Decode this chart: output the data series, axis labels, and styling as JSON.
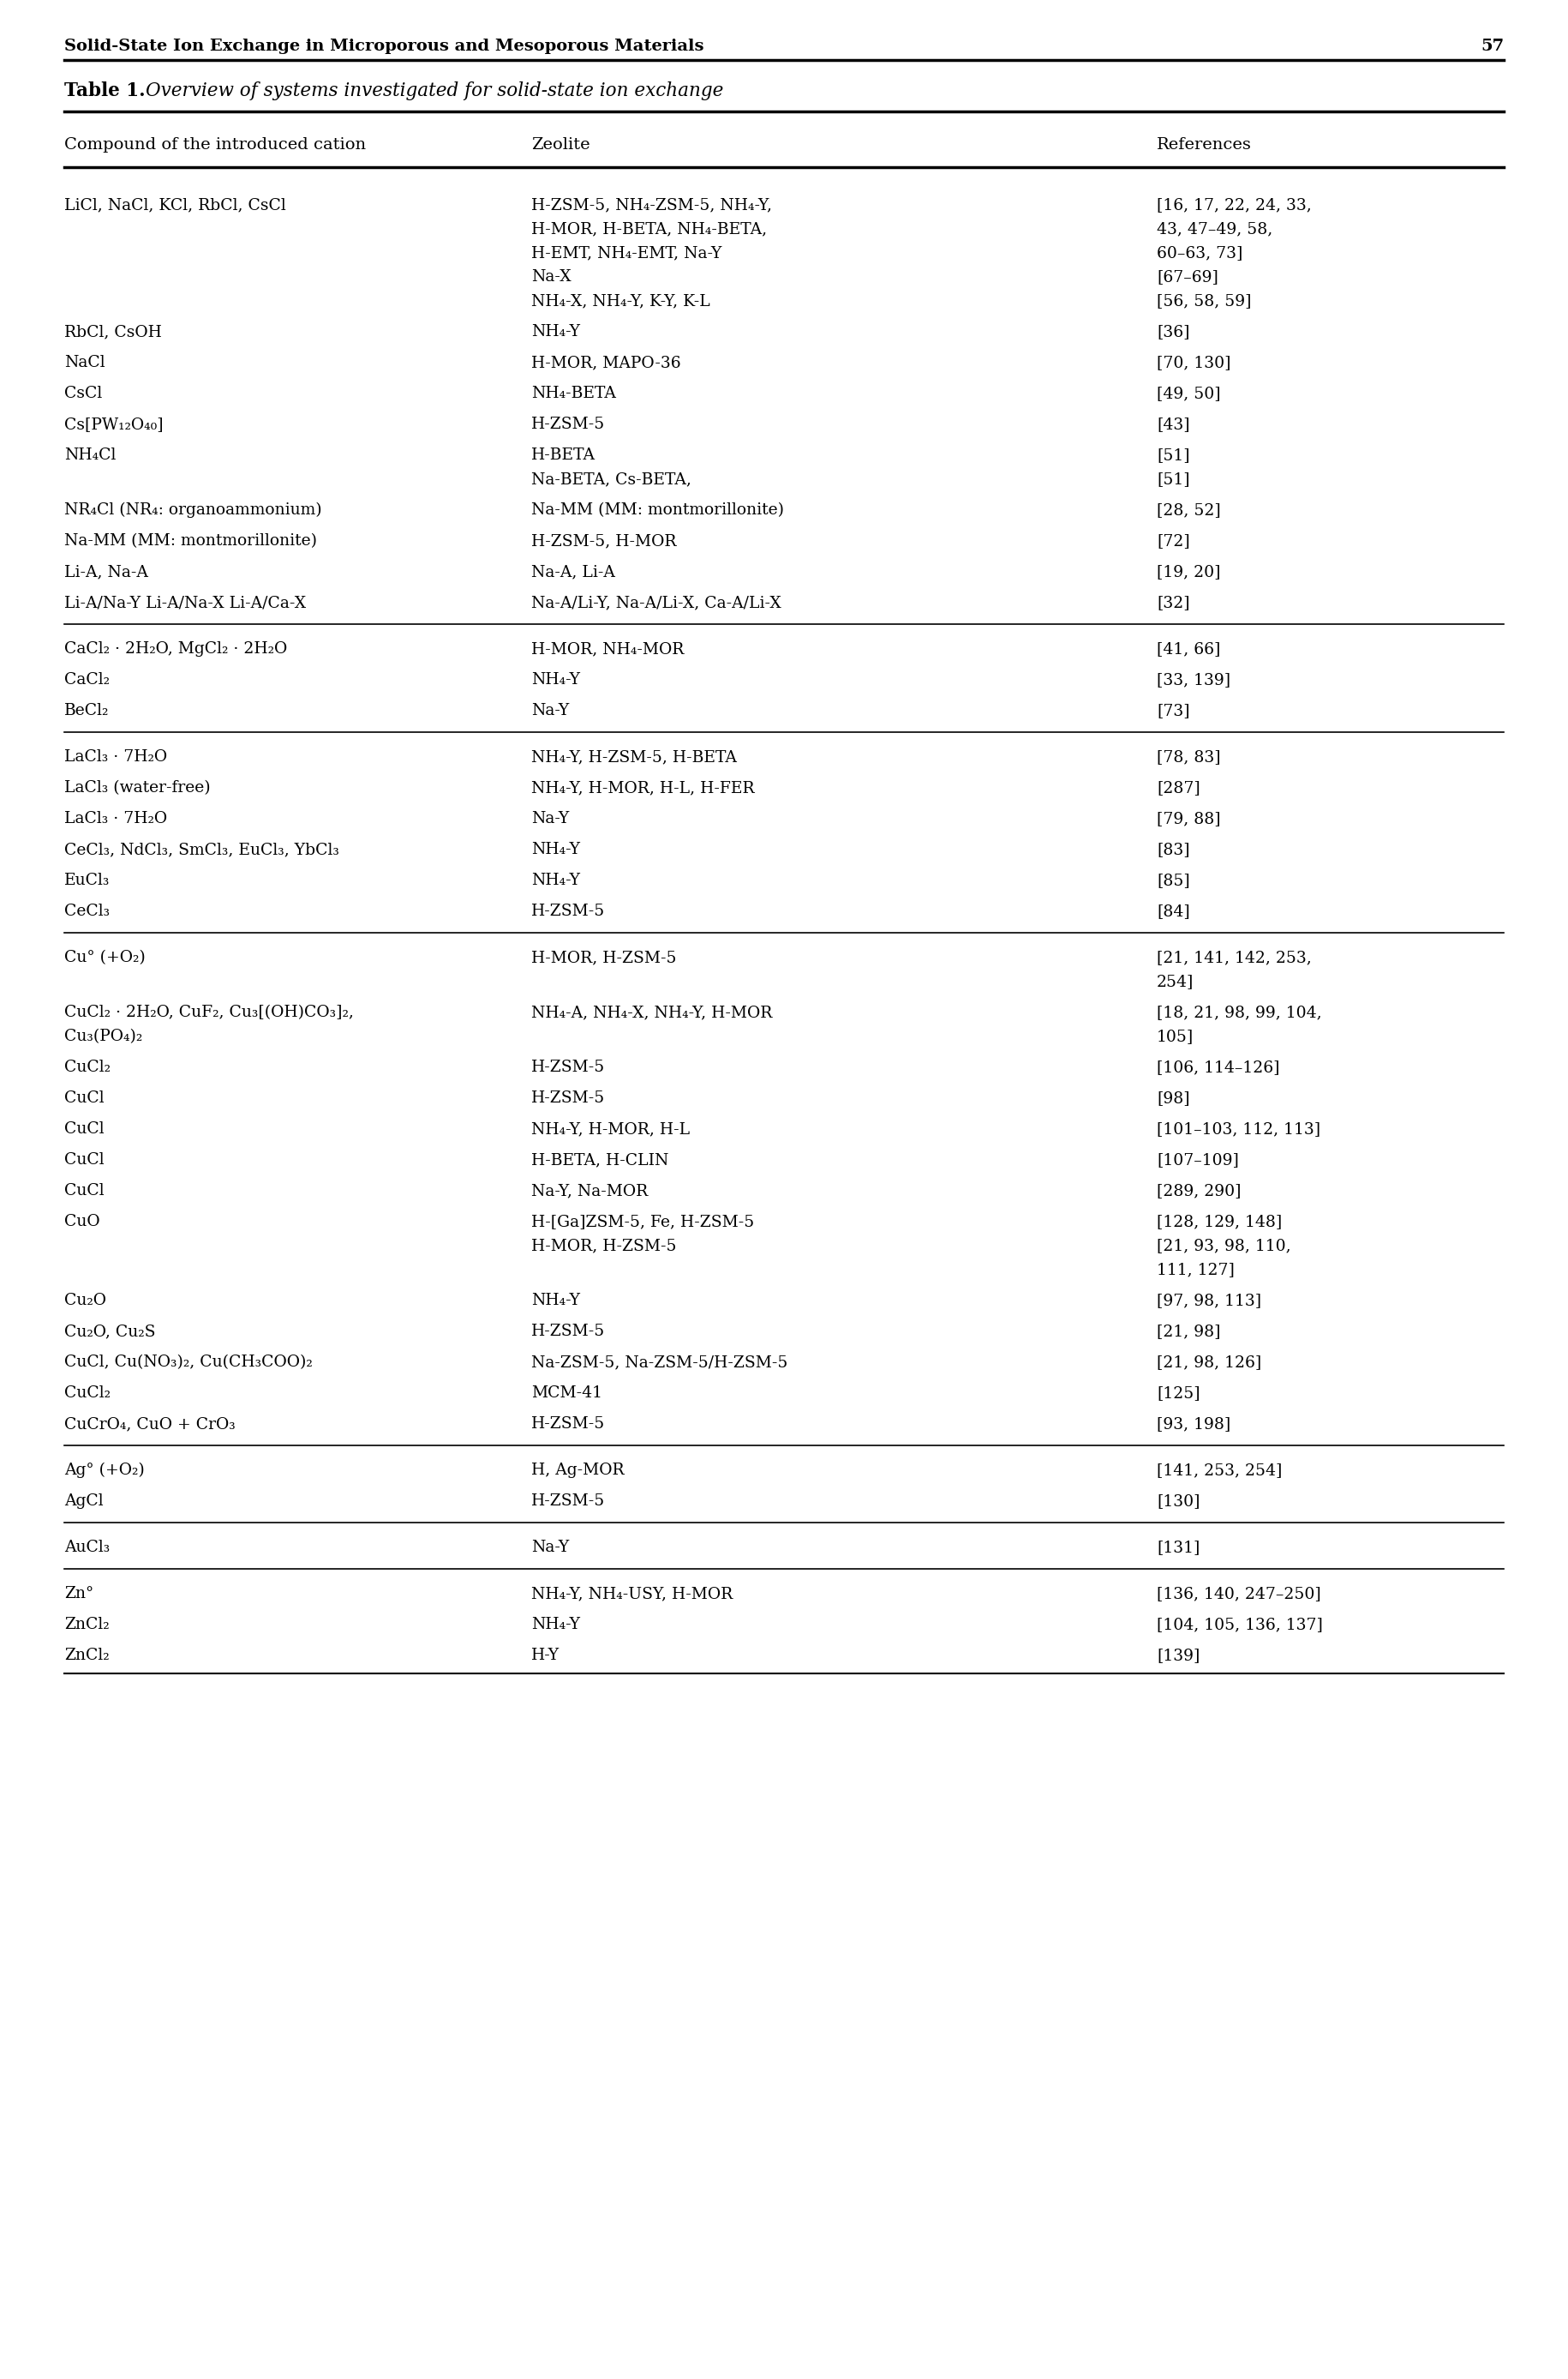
{
  "header_title": "Solid-State Ion Exchange in Microporous and Mesoporous Materials",
  "page_number": "57",
  "table_title": "Table 1.",
  "table_subtitle": "Overview of systems investigated for solid-state ion exchange",
  "col_headers": [
    "Compound of the introduced cation",
    "Zeolite",
    "References"
  ],
  "rows": [
    {
      "col1": [
        "LiCl, NaCl, KCl, RbCl, CsCl"
      ],
      "col2": [
        "H-ZSM-5, NH₄-ZSM-5, NH₄-Y,",
        "H-MOR, H-BETA, NH₄-BETA,",
        "H-EMT, NH₄-EMT, Na-Y",
        "Na-X",
        "NH₄-X, NH₄-Y, K-Y, K-L"
      ],
      "col3": [
        "[16, 17, 22, 24, 33,",
        "43, 47–49, 58,",
        "60–63, 73]",
        "[67–69]",
        "[56, 58, 59]"
      ],
      "section_break_before": false,
      "section_break_after": false
    },
    {
      "col1": [
        "RbCl, CsOH"
      ],
      "col2": [
        "NH₄-Y"
      ],
      "col3": [
        "[36]"
      ],
      "section_break_before": false,
      "section_break_after": false
    },
    {
      "col1": [
        "NaCl"
      ],
      "col2": [
        "H-MOR, MAPO-36"
      ],
      "col3": [
        "[70, 130]"
      ],
      "section_break_before": false,
      "section_break_after": false
    },
    {
      "col1": [
        "CsCl"
      ],
      "col2": [
        "NH₄-BETA"
      ],
      "col3": [
        "[49, 50]"
      ],
      "section_break_before": false,
      "section_break_after": false
    },
    {
      "col1": [
        "Cs[PW₁₂O₄₀]"
      ],
      "col2": [
        "H-ZSM-5"
      ],
      "col3": [
        "[43]"
      ],
      "section_break_before": false,
      "section_break_after": false
    },
    {
      "col1": [
        "NH₄Cl"
      ],
      "col2": [
        "H-BETA",
        "Na-BETA, Cs-BETA,"
      ],
      "col3": [
        "[51]",
        "[51]"
      ],
      "section_break_before": false,
      "section_break_after": false
    },
    {
      "col1": [
        "NR₄Cl (NR₄: organoammonium)"
      ],
      "col2": [
        "Na-MM (MM: montmorillonite)"
      ],
      "col3": [
        "[28, 52]"
      ],
      "section_break_before": false,
      "section_break_after": false
    },
    {
      "col1": [
        "Na-MM (MM: montmorillonite)"
      ],
      "col2": [
        "H-ZSM-5, H-MOR"
      ],
      "col3": [
        "[72]"
      ],
      "section_break_before": false,
      "section_break_after": false
    },
    {
      "col1": [
        "Li-A, Na-A"
      ],
      "col2": [
        "Na-A, Li-A"
      ],
      "col3": [
        "[19, 20]"
      ],
      "section_break_before": false,
      "section_break_after": false
    },
    {
      "col1": [
        "Li-A/Na-Y Li-A/Na-X Li-A/Ca-X"
      ],
      "col2": [
        "Na-A/Li-Y, Na-A/Li-X, Ca-A/Li-X"
      ],
      "col3": [
        "[32]"
      ],
      "section_break_before": false,
      "section_break_after": true
    },
    {
      "col1": [
        "CaCl₂ · 2H₂O, MgCl₂ · 2H₂O"
      ],
      "col2": [
        "H-MOR, NH₄-MOR"
      ],
      "col3": [
        "[41, 66]"
      ],
      "section_break_before": false,
      "section_break_after": false
    },
    {
      "col1": [
        "CaCl₂"
      ],
      "col2": [
        "NH₄-Y"
      ],
      "col3": [
        "[33, 139]"
      ],
      "section_break_before": false,
      "section_break_after": false
    },
    {
      "col1": [
        "BeCl₂"
      ],
      "col2": [
        "Na-Y"
      ],
      "col3": [
        "[73]"
      ],
      "section_break_before": false,
      "section_break_after": true
    },
    {
      "col1": [
        "LaCl₃ · 7H₂O"
      ],
      "col2": [
        "NH₄-Y, H-ZSM-5, H-BETA"
      ],
      "col3": [
        "[78, 83]"
      ],
      "section_break_before": false,
      "section_break_after": false
    },
    {
      "col1": [
        "LaCl₃ (water-free)"
      ],
      "col2": [
        "NH₄-Y, H-MOR, H-L, H-FER"
      ],
      "col3": [
        "[287]"
      ],
      "section_break_before": false,
      "section_break_after": false
    },
    {
      "col1": [
        "LaCl₃ · 7H₂O"
      ],
      "col2": [
        "Na-Y"
      ],
      "col3": [
        "[79, 88]"
      ],
      "section_break_before": false,
      "section_break_after": false
    },
    {
      "col1": [
        "CeCl₃, NdCl₃, SmCl₃, EuCl₃, YbCl₃"
      ],
      "col2": [
        "NH₄-Y"
      ],
      "col3": [
        "[83]"
      ],
      "section_break_before": false,
      "section_break_after": false
    },
    {
      "col1": [
        "EuCl₃"
      ],
      "col2": [
        "NH₄-Y"
      ],
      "col3": [
        "[85]"
      ],
      "section_break_before": false,
      "section_break_after": false
    },
    {
      "col1": [
        "CeCl₃"
      ],
      "col2": [
        "H-ZSM-5"
      ],
      "col3": [
        "[84]"
      ],
      "section_break_before": false,
      "section_break_after": true
    },
    {
      "col1": [
        "Cu° (+O₂)"
      ],
      "col2": [
        "H-MOR, H-ZSM-5"
      ],
      "col3": [
        "[21, 141, 142, 253,",
        "254]"
      ],
      "section_break_before": false,
      "section_break_after": false
    },
    {
      "col1": [
        "CuCl₂ · 2H₂O, CuF₂, Cu₃[(OH)CO₃]₂,",
        "Cu₃(PO₄)₂"
      ],
      "col2": [
        "NH₄-A, NH₄-X, NH₄-Y, H-MOR"
      ],
      "col3": [
        "[18, 21, 98, 99, 104,",
        "105]"
      ],
      "section_break_before": false,
      "section_break_after": false
    },
    {
      "col1": [
        "CuCl₂"
      ],
      "col2": [
        "H-ZSM-5"
      ],
      "col3": [
        "[106, 114–126]"
      ],
      "section_break_before": false,
      "section_break_after": false
    },
    {
      "col1": [
        "CuCl"
      ],
      "col2": [
        "H-ZSM-5"
      ],
      "col3": [
        "[98]"
      ],
      "section_break_before": false,
      "section_break_after": false
    },
    {
      "col1": [
        "CuCl"
      ],
      "col2": [
        "NH₄-Y, H-MOR, H-L"
      ],
      "col3": [
        "[101–103, 112, 113]"
      ],
      "section_break_before": false,
      "section_break_after": false
    },
    {
      "col1": [
        "CuCl"
      ],
      "col2": [
        "H-BETA, H-CLIN"
      ],
      "col3": [
        "[107–109]"
      ],
      "section_break_before": false,
      "section_break_after": false
    },
    {
      "col1": [
        "CuCl"
      ],
      "col2": [
        "Na-Y, Na-MOR"
      ],
      "col3": [
        "[289, 290]"
      ],
      "section_break_before": false,
      "section_break_after": false
    },
    {
      "col1": [
        "CuO"
      ],
      "col2": [
        "H-[Ga]ZSM-5, Fe, H-ZSM-5",
        "H-MOR, H-ZSM-5"
      ],
      "col3": [
        "[128, 129, 148]",
        "[21, 93, 98, 110,",
        "111, 127]"
      ],
      "section_break_before": false,
      "section_break_after": false
    },
    {
      "col1": [
        "Cu₂O"
      ],
      "col2": [
        "NH₄-Y"
      ],
      "col3": [
        "[97, 98, 113]"
      ],
      "section_break_before": false,
      "section_break_after": false
    },
    {
      "col1": [
        "Cu₂O, Cu₂S"
      ],
      "col2": [
        "H-ZSM-5"
      ],
      "col3": [
        "[21, 98]"
      ],
      "section_break_before": false,
      "section_break_after": false
    },
    {
      "col1": [
        "CuCl, Cu(NO₃)₂, Cu(CH₃COO)₂"
      ],
      "col2": [
        "Na-ZSM-5, Na-ZSM-5/H-ZSM-5"
      ],
      "col3": [
        "[21, 98, 126]"
      ],
      "section_break_before": false,
      "section_break_after": false
    },
    {
      "col1": [
        "CuCl₂"
      ],
      "col2": [
        "MCM-41"
      ],
      "col3": [
        "[125]"
      ],
      "section_break_before": false,
      "section_break_after": false
    },
    {
      "col1": [
        "CuCrO₄, CuO + CrO₃"
      ],
      "col2": [
        "H-ZSM-5"
      ],
      "col3": [
        "[93, 198]"
      ],
      "section_break_before": false,
      "section_break_after": true
    },
    {
      "col1": [
        "Ag° (+O₂)"
      ],
      "col2": [
        "H, Ag-MOR"
      ],
      "col3": [
        "[141, 253, 254]"
      ],
      "section_break_before": false,
      "section_break_after": false
    },
    {
      "col1": [
        "AgCl"
      ],
      "col2": [
        "H-ZSM-5"
      ],
      "col3": [
        "[130]"
      ],
      "section_break_before": false,
      "section_break_after": true
    },
    {
      "col1": [
        "AuCl₃"
      ],
      "col2": [
        "Na-Y"
      ],
      "col3": [
        "[131]"
      ],
      "section_break_before": false,
      "section_break_after": true
    },
    {
      "col1": [
        "Zn°"
      ],
      "col2": [
        "NH₄-Y, NH₄-USY, H-MOR"
      ],
      "col3": [
        "[136, 140, 247–250]"
      ],
      "section_break_before": false,
      "section_break_after": false
    },
    {
      "col1": [
        "ZnCl₂"
      ],
      "col2": [
        "NH₄-Y"
      ],
      "col3": [
        "[104, 105, 136, 137]"
      ],
      "section_break_before": false,
      "section_break_after": false
    },
    {
      "col1": [
        "ZnCl₂"
      ],
      "col2": [
        "H-Y"
      ],
      "col3": [
        "[139]"
      ],
      "section_break_before": false,
      "section_break_after": false
    }
  ]
}
